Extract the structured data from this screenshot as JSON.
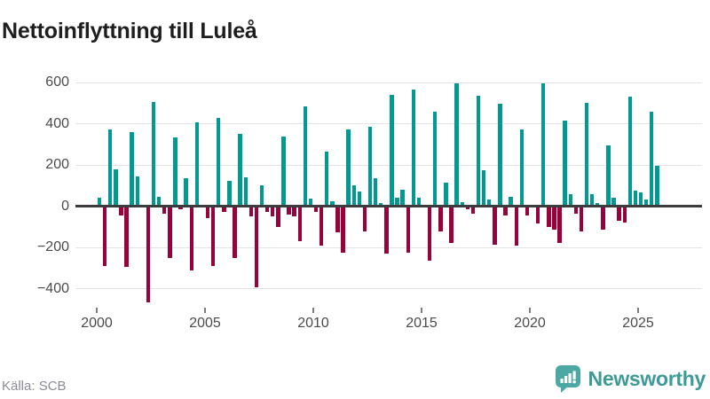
{
  "title": "Nettoinflyttning till Luleå",
  "source_note": "Källa: SCB",
  "brand": {
    "name": "Newsworthy"
  },
  "colors": {
    "positive_bar": "#009a92",
    "negative_bar": "#98023c",
    "gridline": "#e3e3e3",
    "zero_line": "#3c3c3c",
    "title_text": "#1e1e1e",
    "axis_text": "#4a4a4a",
    "source_text": "#8c8c96",
    "brand_text": "#3c9a97",
    "brand_icon": "#4ba8a3"
  },
  "y_axis": {
    "tick_values": [
      600,
      400,
      200,
      0,
      -200,
      -400
    ],
    "tick_labels": [
      "600",
      "400",
      "200",
      "0",
      "−200",
      "−400"
    ]
  },
  "x_axis": {
    "tick_years": [
      2000,
      2005,
      2010,
      2015,
      2020,
      2025
    ]
  },
  "chart_data": {
    "type": "bar",
    "title": "Nettoinflyttning till Luleå",
    "x_unit": "quarter",
    "value_description": "Net migration (persons) per quarter; teal = positive, dark red = negative",
    "x_range": [
      "2000 Q1",
      "2025 Q4"
    ],
    "ylim": [
      -500,
      660
    ],
    "grid": true,
    "legend": false,
    "years": [
      {
        "year": 2000,
        "quarters": [
          40,
          -290,
          370,
          178
        ]
      },
      {
        "year": 2001,
        "quarters": [
          -45,
          -295,
          360,
          142
        ]
      },
      {
        "year": 2002,
        "quarters": [
          0,
          -465,
          505,
          45
        ]
      },
      {
        "year": 2003,
        "quarters": [
          -35,
          -250,
          335,
          -15
        ]
      },
      {
        "year": 2004,
        "quarters": [
          135,
          -310,
          405,
          0
        ]
      },
      {
        "year": 2005,
        "quarters": [
          -60,
          -290,
          430,
          -30
        ]
      },
      {
        "year": 2006,
        "quarters": [
          123,
          -253,
          350,
          140
        ]
      },
      {
        "year": 2007,
        "quarters": [
          -50,
          -395,
          100,
          -27
        ]
      },
      {
        "year": 2008,
        "quarters": [
          -50,
          -100,
          337,
          -40
        ]
      },
      {
        "year": 2009,
        "quarters": [
          -50,
          -170,
          485,
          36
        ]
      },
      {
        "year": 2010,
        "quarters": [
          -27,
          -193,
          265,
          23
        ]
      },
      {
        "year": 2011,
        "quarters": [
          -125,
          -225,
          370,
          100
        ]
      },
      {
        "year": 2012,
        "quarters": [
          70,
          -122,
          385,
          136
        ]
      },
      {
        "year": 2013,
        "quarters": [
          13,
          -232,
          540,
          40
        ]
      },
      {
        "year": 2014,
        "quarters": [
          80,
          -225,
          565,
          43
        ]
      },
      {
        "year": 2015,
        "quarters": [
          0,
          -265,
          460,
          -122
        ]
      },
      {
        "year": 2016,
        "quarters": [
          115,
          -180,
          595,
          18
        ]
      },
      {
        "year": 2017,
        "quarters": [
          -17,
          -36,
          537,
          173
        ]
      },
      {
        "year": 2018,
        "quarters": [
          34,
          -188,
          495,
          -44
        ]
      },
      {
        "year": 2019,
        "quarters": [
          44,
          -193,
          373,
          -44
        ]
      },
      {
        "year": 2020,
        "quarters": [
          0,
          -83,
          595,
          -100
        ]
      },
      {
        "year": 2021,
        "quarters": [
          -115,
          -178,
          413,
          57
        ]
      },
      {
        "year": 2022,
        "quarters": [
          -36,
          -122,
          500,
          57
        ]
      },
      {
        "year": 2023,
        "quarters": [
          16,
          -115,
          294,
          40
        ]
      },
      {
        "year": 2024,
        "quarters": [
          -70,
          -78,
          530,
          76
        ]
      },
      {
        "year": 2025,
        "quarters": [
          66,
          33,
          458,
          197
        ]
      }
    ]
  }
}
